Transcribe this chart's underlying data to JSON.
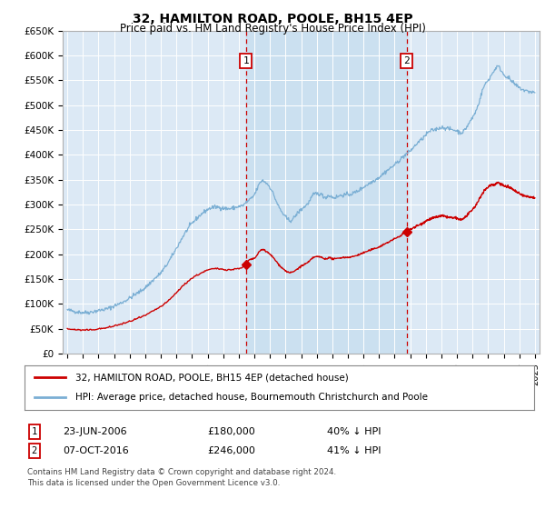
{
  "title": "32, HAMILTON ROAD, POOLE, BH15 4EP",
  "subtitle": "Price paid vs. HM Land Registry's House Price Index (HPI)",
  "ylim": [
    0,
    650000
  ],
  "yticks": [
    0,
    50000,
    100000,
    150000,
    200000,
    250000,
    300000,
    350000,
    400000,
    450000,
    500000,
    550000,
    600000,
    650000
  ],
  "ytick_labels": [
    "£0",
    "£50K",
    "£100K",
    "£150K",
    "£200K",
    "£250K",
    "£300K",
    "£350K",
    "£400K",
    "£450K",
    "£500K",
    "£550K",
    "£600K",
    "£650K"
  ],
  "fig_bg_color": "#ffffff",
  "plot_bg_color": "#dce9f5",
  "grid_color": "#ffffff",
  "hpi_line_color": "#7bafd4",
  "price_line_color": "#cc0000",
  "vline_color": "#cc0000",
  "shade_color": "#c8dff0",
  "transaction1_date_x": 2006.47,
  "transaction1_price": 180000,
  "transaction1_label": "1",
  "transaction1_date_str": "23-JUN-2006",
  "transaction1_amount_str": "£180,000",
  "transaction1_hpi_str": "40% ↓ HPI",
  "transaction2_date_x": 2016.77,
  "transaction2_price": 246000,
  "transaction2_label": "2",
  "transaction2_date_str": "07-OCT-2016",
  "transaction2_amount_str": "£246,000",
  "transaction2_hpi_str": "41% ↓ HPI",
  "legend_line1": "32, HAMILTON ROAD, POOLE, BH15 4EP (detached house)",
  "legend_line2": "HPI: Average price, detached house, Bournemouth Christchurch and Poole",
  "footer1": "Contains HM Land Registry data © Crown copyright and database right 2024.",
  "footer2": "This data is licensed under the Open Government Licence v3.0.",
  "figsize": [
    6.0,
    5.6
  ],
  "dpi": 100,
  "xlim_left": 1994.7,
  "xlim_right": 2025.3
}
